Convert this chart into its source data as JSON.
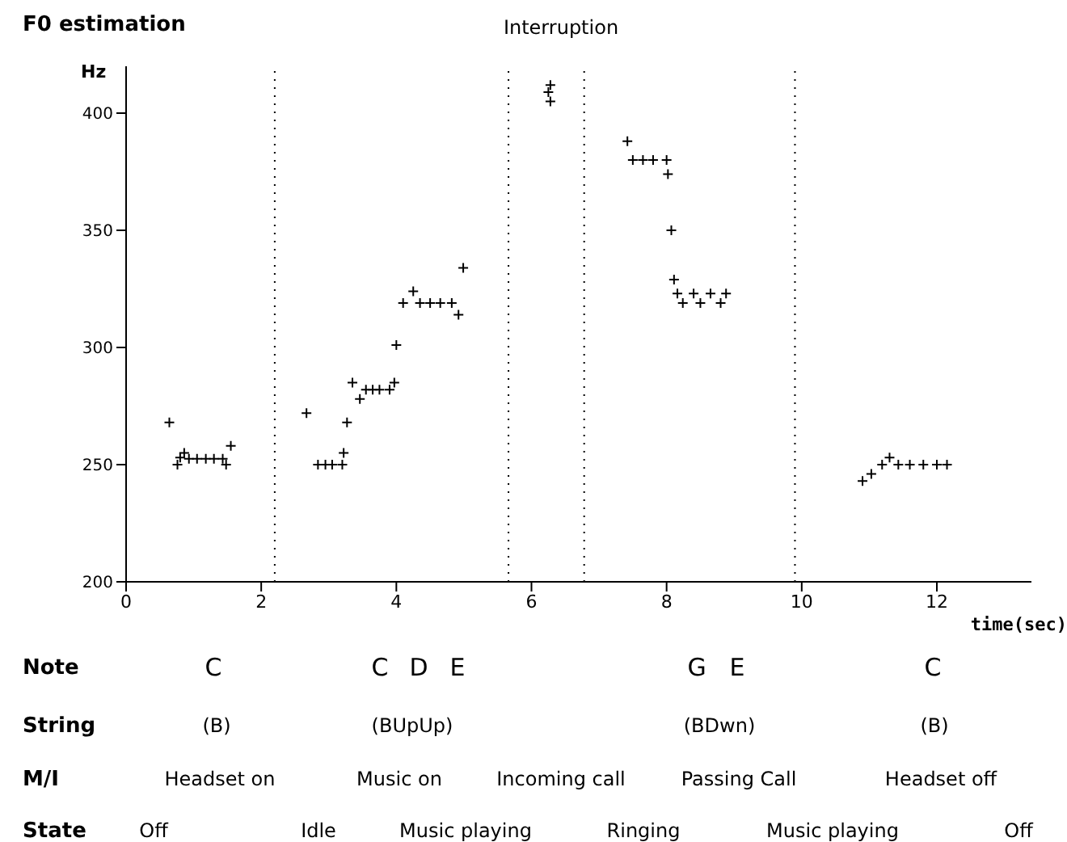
{
  "chart_data": {
    "type": "scatter",
    "title": "F0 estimation",
    "ylabel": "Hz",
    "xlabel": "time(sec)",
    "x": [
      0.64,
      0.76,
      0.8,
      0.86,
      0.93,
      1.05,
      1.18,
      1.3,
      1.43,
      1.48,
      1.55,
      2.67,
      2.84,
      2.95,
      3.05,
      3.2,
      3.22,
      3.27,
      3.35,
      3.46,
      3.55,
      3.65,
      3.75,
      3.9,
      3.97,
      4.0,
      4.1,
      4.25,
      4.35,
      4.5,
      4.65,
      4.82,
      4.92,
      4.99,
      6.25,
      6.28,
      6.28,
      7.42,
      7.5,
      7.65,
      7.8,
      8.0,
      8.02,
      8.07,
      8.11,
      8.16,
      8.4,
      8.65,
      8.88,
      8.24,
      8.5,
      8.8,
      10.9,
      11.03,
      11.19,
      11.3,
      11.43,
      11.6,
      11.8,
      12.0,
      12.15
    ],
    "values": [
      268,
      250,
      253,
      255,
      252.5,
      252.5,
      252.5,
      252.5,
      252.5,
      250,
      258,
      272,
      250,
      250,
      250,
      250,
      255,
      268,
      285,
      278,
      282,
      282,
      282,
      282,
      285,
      301,
      319,
      324,
      319,
      319,
      319,
      319,
      314,
      334,
      409,
      412,
      405,
      388,
      380,
      380,
      380,
      380,
      374,
      350,
      329,
      323,
      323,
      323,
      323,
      319,
      319,
      319,
      243,
      246,
      250,
      253,
      250,
      250,
      250,
      250,
      250
    ],
    "color": "#000000",
    "marker": "cross",
    "grid": false,
    "legend": false,
    "xlim": [
      0,
      13.4
    ],
    "xticks": [
      0,
      2,
      4,
      6,
      8,
      10,
      12
    ],
    "ylim": [
      200,
      420
    ],
    "yticks": [
      200,
      250,
      300,
      350,
      400
    ],
    "ref_lines": [
      {
        "axis": "x",
        "value": 2.2,
        "color": "#000000",
        "line_style": "dotted"
      },
      {
        "axis": "x",
        "value": 5.66,
        "color": "#000000",
        "line_style": "dotted"
      },
      {
        "axis": "x",
        "value": 6.78,
        "color": "#000000",
        "line_style": "dotted"
      },
      {
        "axis": "x",
        "value": 9.9,
        "color": "#000000",
        "line_style": "dotted"
      }
    ],
    "annotations": [
      "Interruption",
      "Note",
      "C",
      "C",
      "D",
      "E",
      "G",
      "E",
      "C",
      "String",
      "(B)",
      "(BUpUp)",
      "(BDwn)",
      "(B)",
      "M/I",
      "Headset on",
      "Music on",
      "Incoming call",
      "Passing Call",
      "Headset off",
      "State",
      "Off",
      "Idle",
      "Music playing",
      "Ringing",
      "Music playing",
      "Off"
    ]
  }
}
